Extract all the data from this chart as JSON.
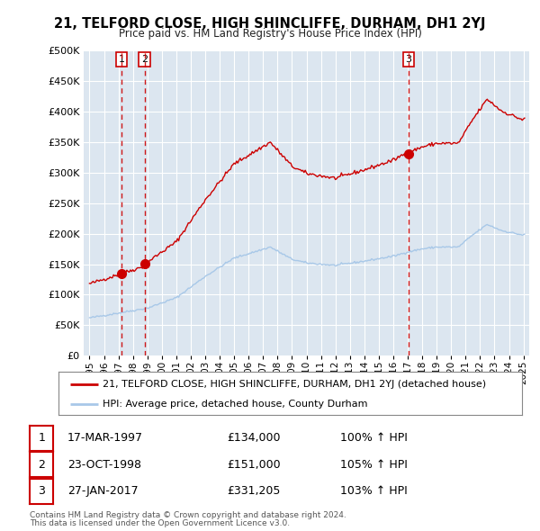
{
  "title": "21, TELFORD CLOSE, HIGH SHINCLIFFE, DURHAM, DH1 2YJ",
  "subtitle": "Price paid vs. HM Land Registry's House Price Index (HPI)",
  "legend_line1": "21, TELFORD CLOSE, HIGH SHINCLIFFE, DURHAM, DH1 2YJ (detached house)",
  "legend_line2": "HPI: Average price, detached house, County Durham",
  "footer1": "Contains HM Land Registry data © Crown copyright and database right 2024.",
  "footer2": "This data is licensed under the Open Government Licence v3.0.",
  "sale_color": "#cc0000",
  "hpi_color": "#a8c8e8",
  "background_color": "#ffffff",
  "plot_bg_color": "#dce6f0",
  "grid_color": "#ffffff",
  "ylim": [
    0,
    500000
  ],
  "yticks": [
    0,
    50000,
    100000,
    150000,
    200000,
    250000,
    300000,
    350000,
    400000,
    450000,
    500000
  ],
  "ytick_labels": [
    "£0",
    "£50K",
    "£100K",
    "£150K",
    "£200K",
    "£250K",
    "£300K",
    "£350K",
    "£400K",
    "£450K",
    "£500K"
  ],
  "sales": [
    {
      "date": 1997.21,
      "price": 134000,
      "label": "1"
    },
    {
      "date": 1998.82,
      "price": 151000,
      "label": "2"
    },
    {
      "date": 2017.07,
      "price": 331205,
      "label": "3"
    }
  ],
  "table_rows": [
    {
      "num": "1",
      "date": "17-MAR-1997",
      "price": "£134,000",
      "pct": "100% ↑ HPI"
    },
    {
      "num": "2",
      "date": "23-OCT-1998",
      "price": "£151,000",
      "pct": "105% ↑ HPI"
    },
    {
      "num": "3",
      "date": "27-JAN-2017",
      "price": "£331,205",
      "pct": "103% ↑ HPI"
    }
  ],
  "hpi_waypoints_x": [
    1995.0,
    1997.0,
    1999.0,
    2001.0,
    2003.0,
    2005.0,
    2007.5,
    2009.0,
    2010.0,
    2012.0,
    2014.0,
    2016.0,
    2017.0,
    2018.0,
    2019.0,
    2020.5,
    2021.5,
    2022.5,
    2023.5,
    2024.9
  ],
  "hpi_waypoints_y": [
    62000,
    70000,
    78000,
    95000,
    130000,
    160000,
    178000,
    158000,
    152000,
    148000,
    155000,
    163000,
    170000,
    175000,
    178000,
    178000,
    198000,
    215000,
    205000,
    198000
  ]
}
